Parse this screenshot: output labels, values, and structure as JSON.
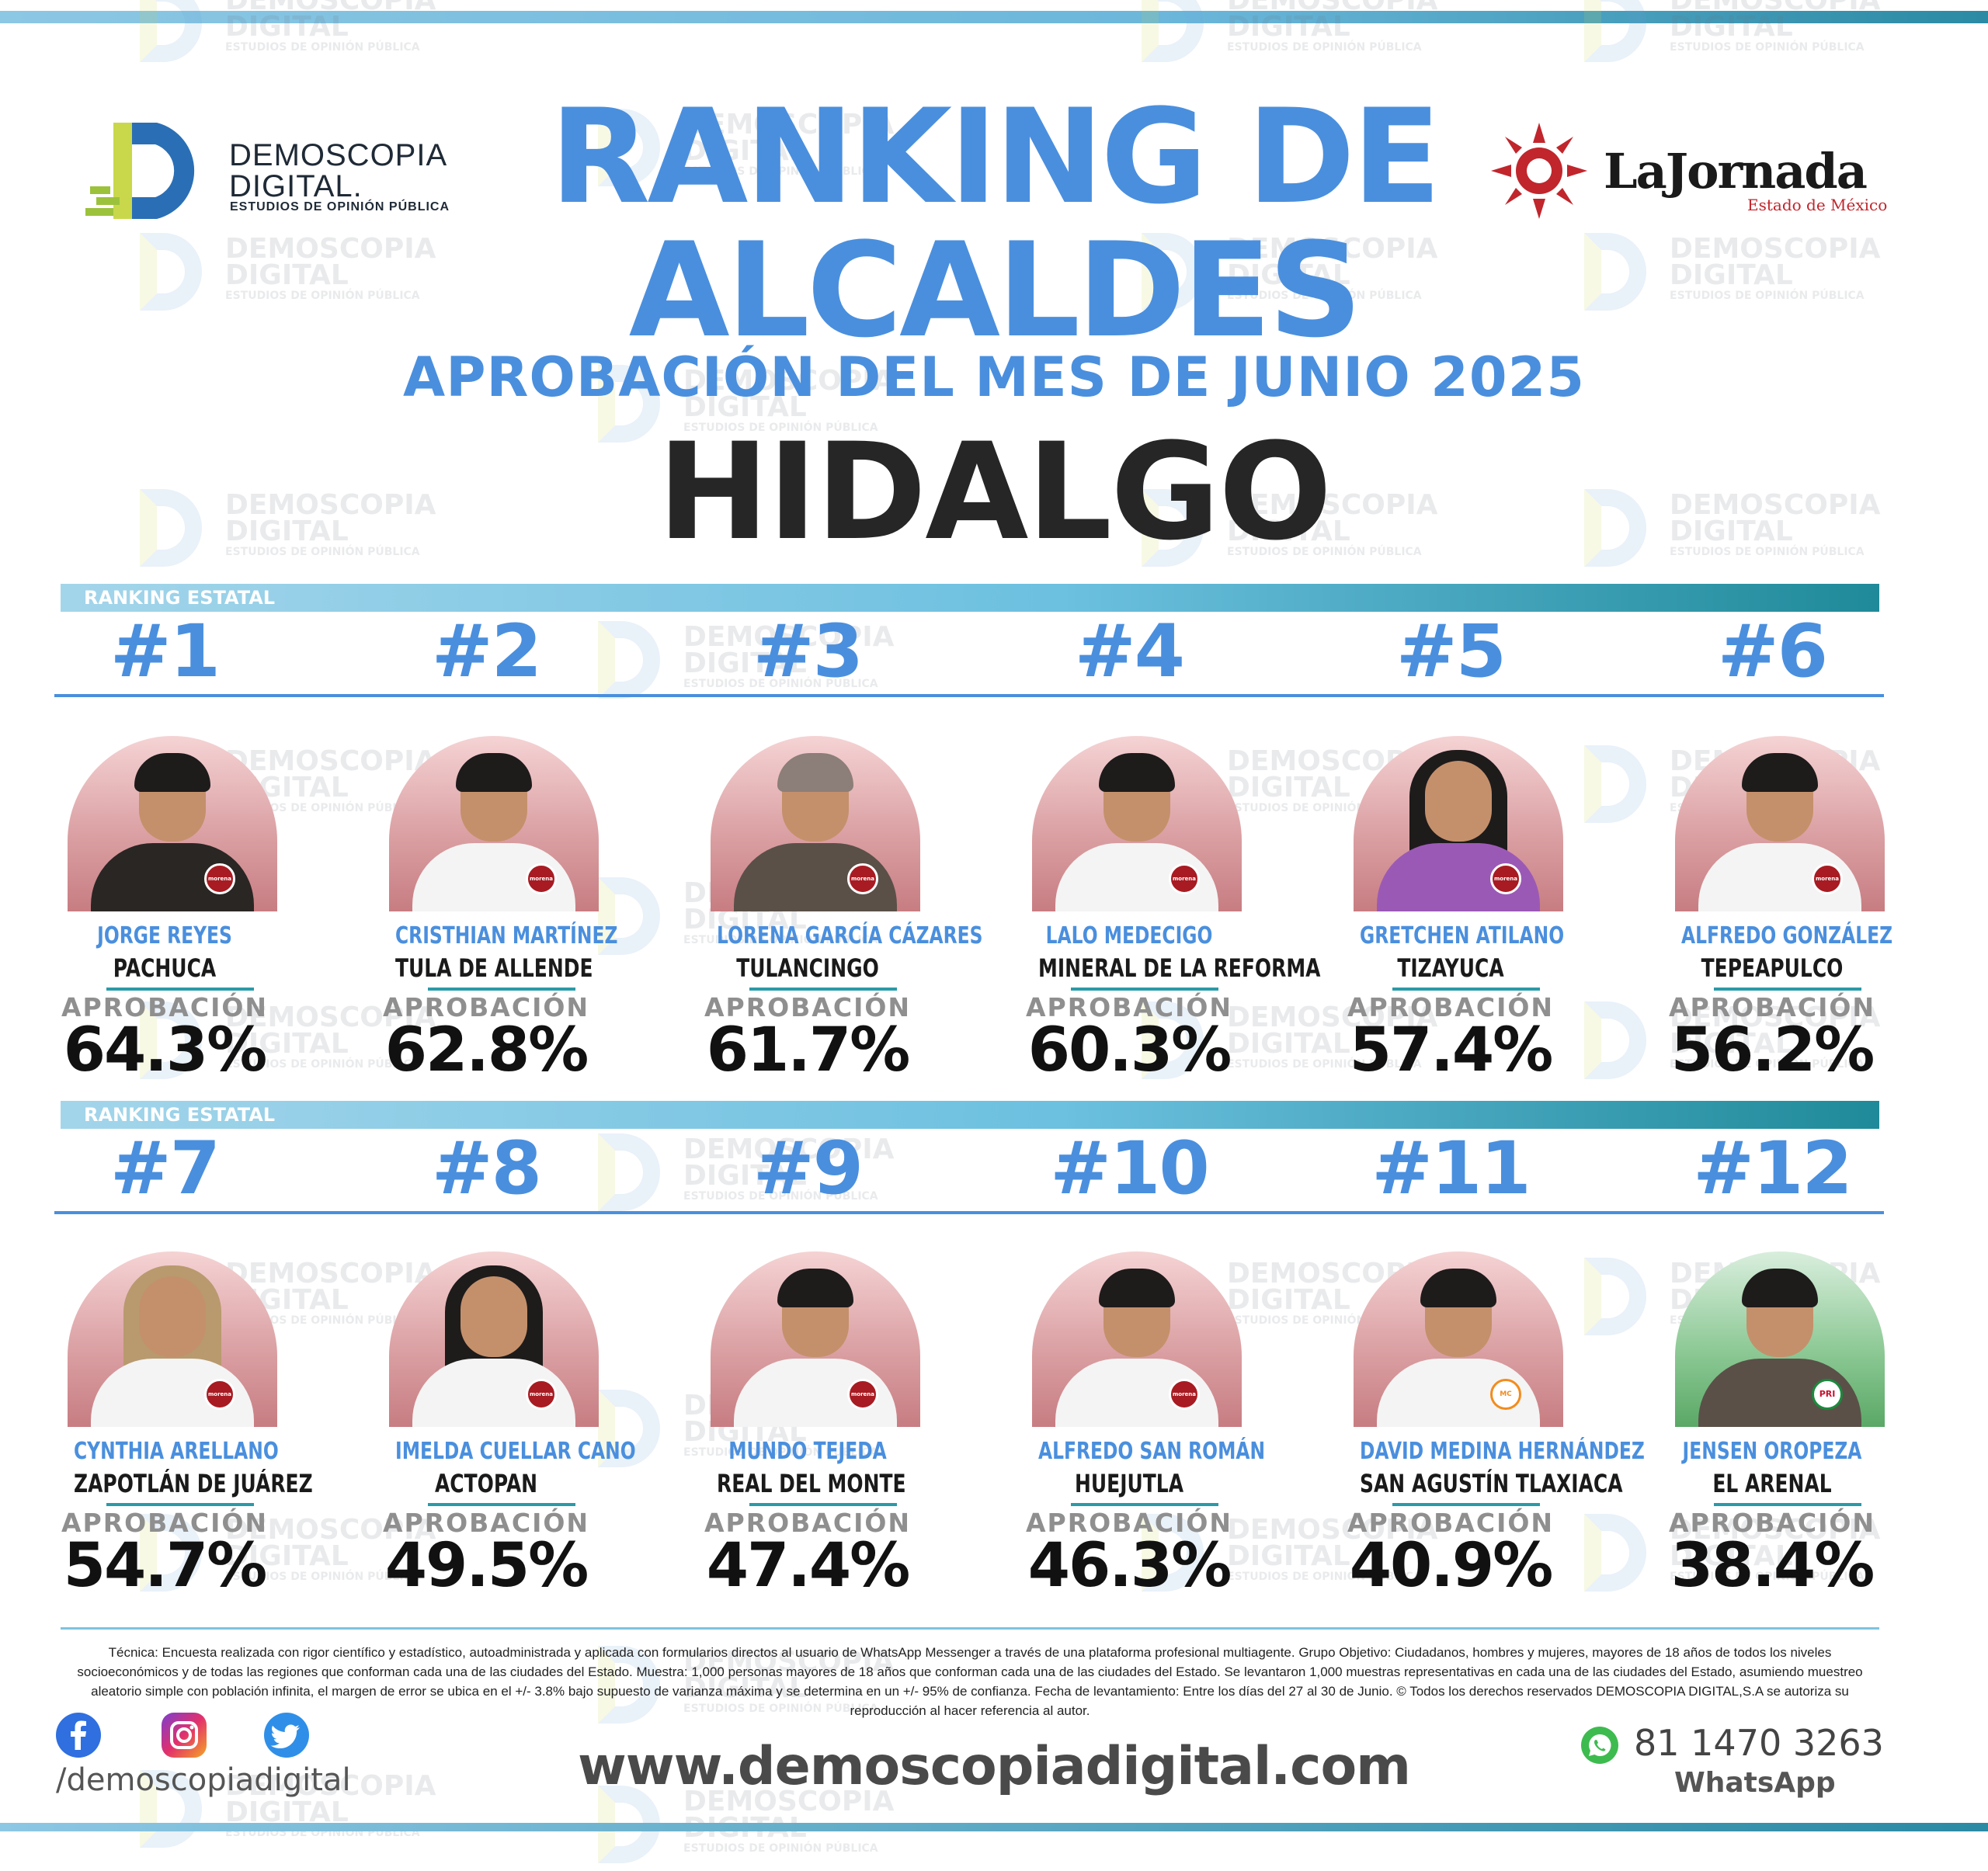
{
  "header": {
    "title_line1": "RANKING DE",
    "title_line2": "ALCALDES",
    "subtitle": "APROBACIÓN DEL MES DE JUNIO 2025",
    "state": "HIDALGO"
  },
  "logos": {
    "demoscopia_name_line1": "DEMOSCOPIA",
    "demoscopia_name_line2": "DIGITAL.",
    "demoscopia_tagline": "ESTUDIOS DE OPINIÓN PÚBLICA",
    "jornada_name": "LaJornada",
    "jornada_sub": "Estado de México"
  },
  "watermark": {
    "line1": "DEMOSCOPIA",
    "line2": "DIGITAL",
    "line3": "ESTUDIOS DE OPINIÓN PÚBLICA"
  },
  "sections": [
    {
      "band_label": "RANKING ESTATAL",
      "cards": [
        {
          "rank": "#1",
          "name": "JORGE REYES",
          "city": "PACHUCA",
          "label": "APROBACIÓN",
          "value": "64.3%",
          "party": "morena"
        },
        {
          "rank": "#2",
          "name": "CRISTHIAN MARTÍNEZ",
          "city": "TULA DE ALLENDE",
          "label": "APROBACIÓN",
          "value": "62.8%",
          "party": "morena"
        },
        {
          "rank": "#3",
          "name": "LORENA GARCÍA CÁZARES",
          "city": "TULANCINGO",
          "label": "APROBACIÓN",
          "value": "61.7%",
          "party": "morena"
        },
        {
          "rank": "#4",
          "name": "LALO MEDECIGO",
          "city": "MINERAL DE LA REFORMA",
          "label": "APROBACIÓN",
          "value": "60.3%",
          "party": "morena"
        },
        {
          "rank": "#5",
          "name": "GRETCHEN ATILANO",
          "city": "TIZAYUCA",
          "label": "APROBACIÓN",
          "value": "57.4%",
          "party": "morena"
        },
        {
          "rank": "#6",
          "name": "ALFREDO GONZÁLEZ",
          "city": "TEPEAPULCO",
          "label": "APROBACIÓN",
          "value": "56.2%",
          "party": "morena"
        }
      ]
    },
    {
      "band_label": "RANKING ESTATAL",
      "cards": [
        {
          "rank": "#7",
          "name": "CYNTHIA ARELLANO",
          "city": "ZAPOTLÁN DE JUÁREZ",
          "label": "APROBACIÓN",
          "value": "54.7%",
          "party": "morena"
        },
        {
          "rank": "#8",
          "name": "IMELDA CUELLAR CANO",
          "city": "ACTOPAN",
          "label": "APROBACIÓN",
          "value": "49.5%",
          "party": "morena"
        },
        {
          "rank": "#9",
          "name": "MUNDO TEJEDA",
          "city": "REAL DEL MONTE",
          "label": "APROBACIÓN",
          "value": "47.4%",
          "party": "morena"
        },
        {
          "rank": "#10",
          "name": "ALFREDO SAN ROMÁN",
          "city": "HUEJUTLA",
          "label": "APROBACIÓN",
          "value": "46.3%",
          "party": "morena"
        },
        {
          "rank": "#11",
          "name": "DAVID MEDINA HERNÁNDEZ",
          "city": "SAN AGUSTÍN TLAXIACA",
          "label": "APROBACIÓN",
          "value": "40.9%",
          "party": "MC"
        },
        {
          "rank": "#12",
          "name": "JENSEN OROPEZA",
          "city": "EL ARENAL",
          "label": "APROBACIÓN",
          "value": "38.4%",
          "party": "PRI"
        }
      ]
    }
  ],
  "footer": {
    "technical_note": "Técnica: Encuesta realizada con rigor científico y estadístico, autoadministrada y aplicada con formularios directos al usuario de WhatsApp Messenger a través de una plataforma profesional multiagente. Grupo Objetivo: Ciudadanos, hombres y mujeres, mayores de 18 años de todos los niveles socioeconómicos y de todas las regiones que conforman cada una de las ciudades del Estado. Muestra: 1,000 personas mayores de 18 años que conforman cada una de las ciudades del Estado. Se levantaron 1,000 muestras representativas en cada una de las ciudades del Estado, asumiendo muestreo aleatorio simple con población infinita, el margen de error se ubica en el +/- 3.8% bajo supuesto de varianza máxima y se determina en un +/- 95% de confianza. Fecha de levantamiento: Entre los días del 27 al 30 de Junio. © Todos los derechos reservados DEMOSCOPIA DIGITAL,S.A se autoriza su reproducción al hacer referencia al autor.",
    "social_handle": "/demoscopiadigital",
    "website": "www.demoscopiadigital.com",
    "phone": "81 1470 3263",
    "whatsapp_label": "WhatsApp",
    "icons": [
      "facebook-icon",
      "instagram-icon",
      "twitter-icon",
      "whatsapp-icon"
    ]
  },
  "colors": {
    "accent_blue": "#4a8fde",
    "dark_text": "#262626",
    "band_start": "#a3d5ea",
    "band_end": "#1f8a99",
    "morena": "#a81b22",
    "pri_green": "#1b8a3d"
  }
}
